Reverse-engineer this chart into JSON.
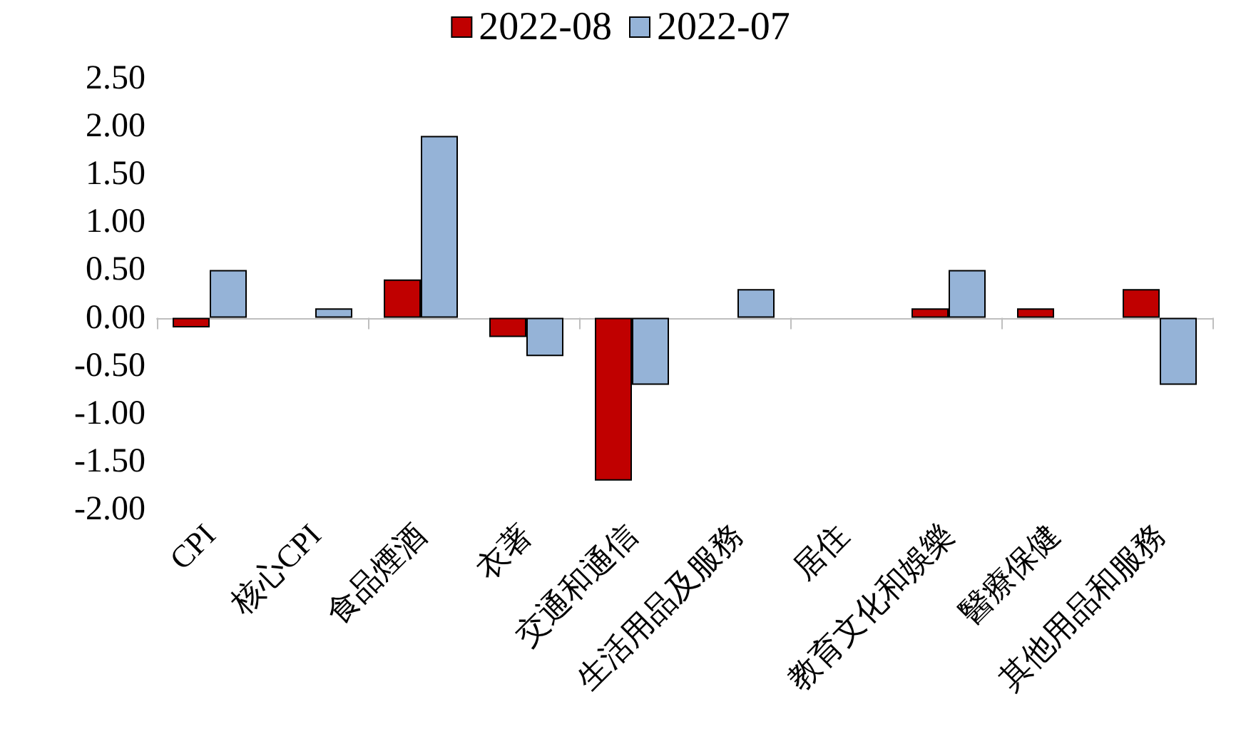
{
  "chart_data": {
    "type": "bar",
    "categories": [
      "CPI",
      "核心CPI",
      "食品煙酒",
      "衣著",
      "交通和通信",
      "生活用品及服務",
      "居住",
      "教育文化和娛樂",
      "醫療保健",
      "其他用品和服務"
    ],
    "series": [
      {
        "name": "2022-08",
        "color": "#c00000",
        "values": [
          -0.1,
          0,
          0.4,
          -0.2,
          -1.7,
          0,
          0,
          0.1,
          0.1,
          0.3
        ]
      },
      {
        "name": "2022-07",
        "color": "#95b3d7",
        "values": [
          0.5,
          0.1,
          1.9,
          -0.4,
          -0.7,
          0.3,
          0,
          0.5,
          0,
          -0.7
        ]
      }
    ],
    "ylim": [
      -2,
      2.5
    ],
    "yticks": [
      {
        "value": -2,
        "label": "-2.00"
      },
      {
        "value": -1.5,
        "label": "-1.50"
      },
      {
        "value": -1,
        "label": "-1.00"
      },
      {
        "value": -0.5,
        "label": "-0.50"
      },
      {
        "value": 0,
        "label": "0.00"
      },
      {
        "value": 0.5,
        "label": "0.50"
      },
      {
        "value": 1,
        "label": "1.00"
      },
      {
        "value": 1.5,
        "label": "1.50"
      },
      {
        "value": 2,
        "label": "2.00"
      },
      {
        "value": 2.5,
        "label": "2.50"
      }
    ],
    "legend": "top"
  }
}
